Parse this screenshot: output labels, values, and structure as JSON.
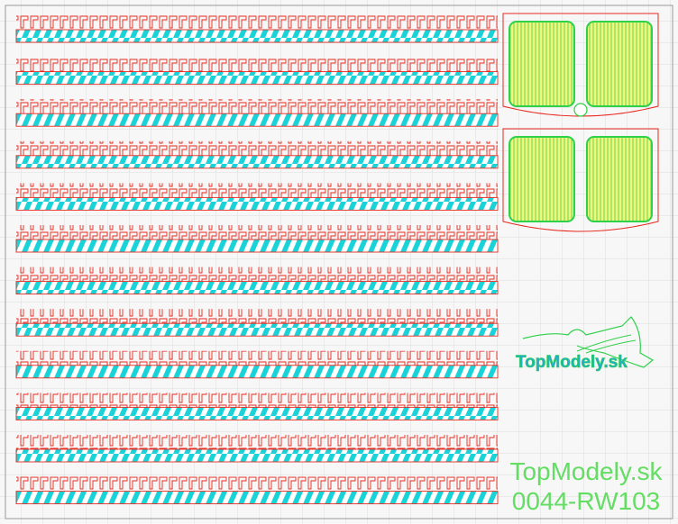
{
  "logo": {
    "text": "TopModely.sk"
  },
  "footer": {
    "brand": "TopModely.sk",
    "code": "0044-RW103"
  }
}
